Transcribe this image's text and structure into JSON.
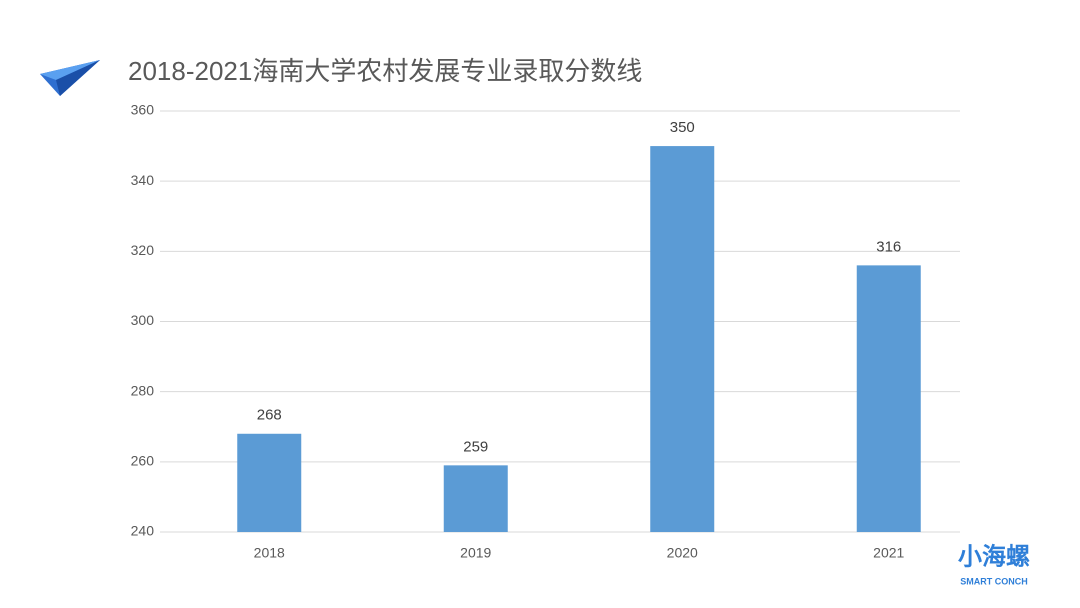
{
  "chart_data": {
    "type": "bar",
    "title": "2018-2021海南大学农村发展专业录取分数线",
    "categories": [
      "2018",
      "2019",
      "2020",
      "2021"
    ],
    "values": [
      268,
      259,
      350,
      316
    ],
    "color": "#5b9bd5",
    "ylim": [
      240,
      360
    ],
    "yticks": [
      240,
      260,
      280,
      300,
      320,
      340,
      360
    ],
    "grid": true,
    "data_labels": true,
    "logo": {
      "text": "小海螺",
      "subtext": "SMART CONCH"
    }
  }
}
